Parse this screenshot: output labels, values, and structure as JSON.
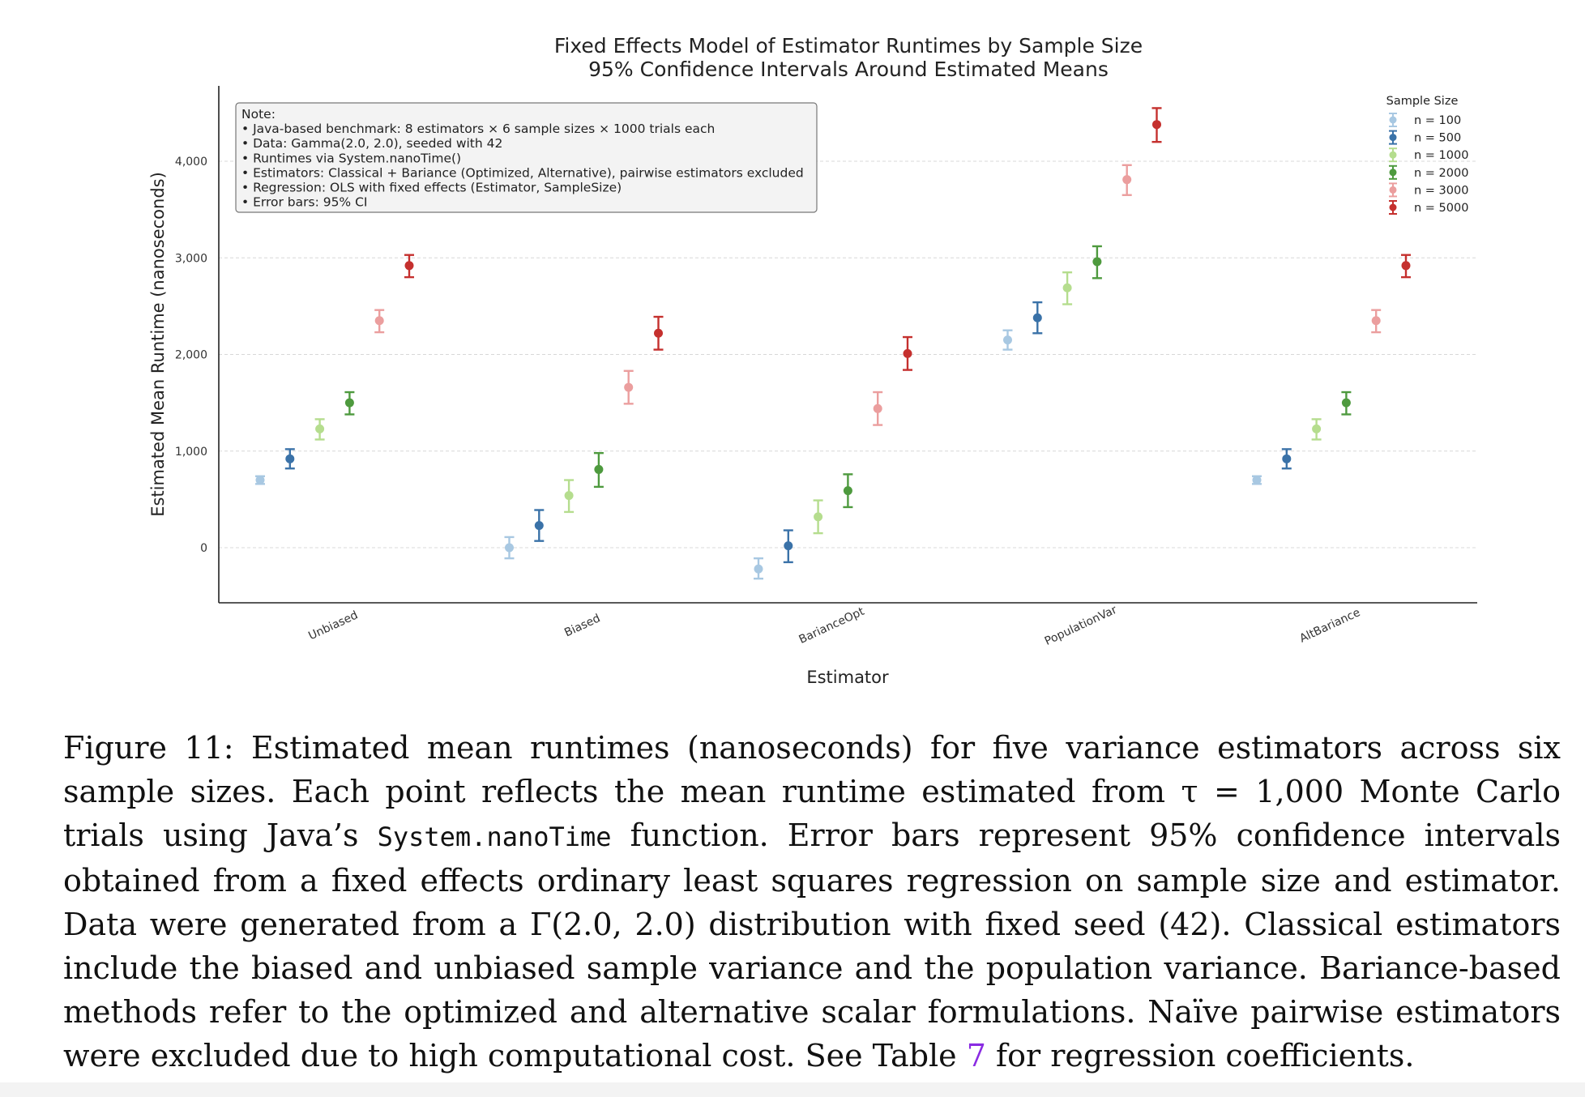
{
  "chart_data": {
    "type": "scatter",
    "title": "Fixed Effects Model of Estimator Runtimes by Sample Size",
    "subtitle": "95% Confidence Intervals Around Estimated Means",
    "xlabel": "Estimator",
    "ylabel": "Estimated Mean Runtime (nanoseconds)",
    "categories": [
      "Unbiased",
      "Biased",
      "BarianceOpt",
      "PopulationVar",
      "AltBariance"
    ],
    "ylim": [
      -570,
      4780
    ],
    "yticks": [
      0,
      1000,
      2000,
      3000,
      4000
    ],
    "ytick_labels": [
      "0",
      "1,000",
      "2,000",
      "3,000",
      "4,000"
    ],
    "grid": true,
    "legend_title": "Sample Size",
    "legend_position": "top-right",
    "series": [
      {
        "name": "n = 100",
        "color": "#a8c8e2",
        "values": [
          700,
          0,
          -220,
          2150,
          700
        ],
        "ci_low": [
          660,
          -110,
          -320,
          2050,
          660
        ],
        "ci_high": [
          740,
          110,
          -110,
          2250,
          740
        ]
      },
      {
        "name": "n = 500",
        "color": "#3a72a8",
        "values": [
          920,
          230,
          20,
          2380,
          920
        ],
        "ci_low": [
          820,
          70,
          -150,
          2220,
          820
        ],
        "ci_high": [
          1020,
          390,
          180,
          2540,
          1020
        ]
      },
      {
        "name": "n = 1000",
        "color": "#b5dd8e",
        "values": [
          1230,
          540,
          320,
          2690,
          1230
        ],
        "ci_low": [
          1120,
          370,
          150,
          2520,
          1120
        ],
        "ci_high": [
          1330,
          700,
          490,
          2850,
          1330
        ]
      },
      {
        "name": "n = 2000",
        "color": "#4e9a3e",
        "values": [
          1500,
          810,
          590,
          2960,
          1500
        ],
        "ci_low": [
          1380,
          630,
          420,
          2790,
          1380
        ],
        "ci_high": [
          1610,
          980,
          760,
          3120,
          1610
        ]
      },
      {
        "name": "n = 3000",
        "color": "#eb9e9e",
        "values": [
          2350,
          1660,
          1440,
          3810,
          2350
        ],
        "ci_low": [
          2230,
          1490,
          1270,
          3650,
          2230
        ],
        "ci_high": [
          2460,
          1830,
          1610,
          3960,
          2460
        ]
      },
      {
        "name": "n = 5000",
        "color": "#c5302e",
        "values": [
          2920,
          2220,
          2010,
          4380,
          2920
        ],
        "ci_low": [
          2800,
          2050,
          1840,
          4200,
          2800
        ],
        "ci_high": [
          3030,
          2390,
          2180,
          4550,
          3030
        ]
      }
    ],
    "annotation": {
      "lines": [
        "Note:",
        "• Java-based benchmark: 8 estimators × 6 sample sizes × 1000 trials each",
        "• Data: Gamma(2.0, 2.0), seeded with 42",
        "• Runtimes via System.nanoTime()",
        "• Estimators: Classical + Bariance (Optimized, Alternative), pairwise estimators excluded",
        "• Regression: OLS with fixed effects (Estimator, SampleSize)",
        "• Error bars: 95% CI"
      ]
    }
  },
  "caption": {
    "label": "Figure 11:",
    "part1": " Estimated mean runtimes (nanoseconds) for five variance estimators across six sample sizes. Each point reflects the mean runtime estimated from τ = 1,000 Monte Carlo trials using Java’s ",
    "code": "System.nanoTime",
    "part2": " function. Error bars represent 95% confidence intervals obtained from a fixed effects ordinary least squares regression on sample size and estimator. Data were generated from a Γ(2.0, 2.0) distribution with fixed seed (42). Classical estimators include the biased and unbiased sample variance and the population variance. Bariance-based methods refer to the optimized and alternative scalar formulations. Naïve pairwise estimators were excluded due to high computational cost. See Table ",
    "ref": "7",
    "part3": " for regression coefficients."
  }
}
